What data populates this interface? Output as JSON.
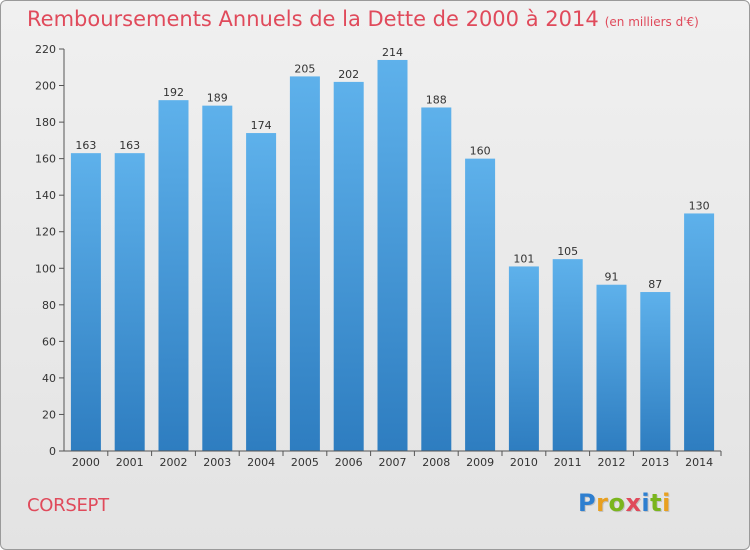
{
  "chart_data": {
    "type": "bar",
    "title": "Remboursements Annuels de la Dette de 2000 à 2014",
    "unit": "(en milliers d'€)",
    "categories": [
      "2000",
      "2001",
      "2002",
      "2003",
      "2004",
      "2005",
      "2006",
      "2007",
      "2008",
      "2009",
      "2010",
      "2011",
      "2012",
      "2013",
      "2014"
    ],
    "values": [
      163,
      163,
      192,
      189,
      174,
      205,
      202,
      214,
      188,
      160,
      101,
      105,
      91,
      87,
      130
    ],
    "yticks": [
      0,
      20,
      40,
      60,
      80,
      100,
      120,
      140,
      160,
      180,
      200,
      220
    ],
    "ylim": [
      0,
      220
    ],
    "xlabel": "",
    "ylabel": "",
    "grid": false
  },
  "commune": "CORSEPT",
  "logo": {
    "text": "Proxiti",
    "letters": [
      "P",
      "r",
      "o",
      "x",
      "i",
      "t",
      "i"
    ],
    "colors": [
      "#2e7fd0",
      "#e8a020",
      "#7ab51d",
      "#e04a5b",
      "#2e7fd0",
      "#7ab51d",
      "#e8a020"
    ]
  },
  "colors": {
    "bar_top": "#5eb1eb",
    "bar_bottom": "#2e7dc0",
    "title": "#e04a5b"
  }
}
